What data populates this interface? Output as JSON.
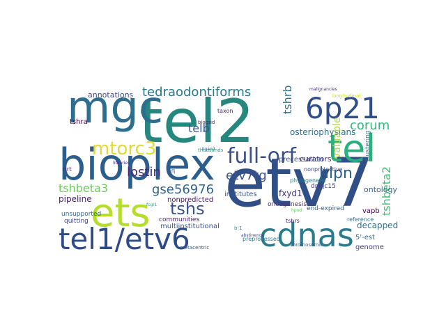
{
  "title": "",
  "words": [
    {
      "text": "etv7",
      "color": "#2f4f86"
    },
    {
      "text": "tel2",
      "color": "#26877e"
    },
    {
      "text": "bioplex",
      "color": "#2b5e8d"
    },
    {
      "text": "mgc",
      "color": "#2d6e8e"
    },
    {
      "text": "ets",
      "color": "#b5de2b"
    },
    {
      "text": "tel1/etv6",
      "color": "#2f4b86"
    },
    {
      "text": "cdnas",
      "color": "#2a7b8e"
    },
    {
      "text": "tel",
      "color": "#2ab07f"
    },
    {
      "text": "6p21",
      "color": "#2f4e8a"
    },
    {
      "text": "full-orf",
      "color": "#3b4f8a"
    },
    {
      "text": "mtorc3",
      "color": "#e0d936"
    },
    {
      "text": "tedraodontiforms",
      "color": "#2a788e"
    },
    {
      "text": "tshs",
      "color": "#3a5389"
    },
    {
      "text": "gse56976",
      "color": "#31638d"
    },
    {
      "text": "hlpn",
      "color": "#2b5f8c"
    },
    {
      "text": "etv7tg",
      "color": "#3c508b"
    },
    {
      "text": "corum",
      "color": "#32b67a"
    },
    {
      "text": "lostin",
      "color": "#482677"
    },
    {
      "text": "tshbeta3",
      "color": "#6ccd5a"
    },
    {
      "text": "tshbeta2",
      "color": "#3fbc73"
    },
    {
      "text": "tshrb",
      "color": "#2d718e"
    },
    {
      "text": "telb",
      "color": "#3b528b"
    },
    {
      "text": "ontology",
      "color": "#355f8d"
    },
    {
      "text": "fxyd1",
      "color": "#453581"
    },
    {
      "text": "osteriophysians",
      "color": "#2e6f8e"
    },
    {
      "text": "valuable",
      "color": "#a8db34"
    },
    {
      "text": "annotations",
      "color": "#3e4a89"
    },
    {
      "text": "pipeline",
      "color": "#482173"
    },
    {
      "text": "nonpredicted",
      "color": "#481668"
    },
    {
      "text": "communities",
      "color": "#482475"
    },
    {
      "text": "multiinstitutional",
      "color": "#3b528b"
    },
    {
      "text": "unsupported",
      "color": "#31688e"
    },
    {
      "text": "decapped",
      "color": "#2c738e"
    },
    {
      "text": "genome",
      "color": "#433e85"
    },
    {
      "text": "5'-est",
      "color": "#2e6e8e"
    },
    {
      "text": "curators",
      "color": "#46307e"
    },
    {
      "text": "precessation",
      "color": "#3e4c8a"
    },
    {
      "text": "clustering",
      "color": "#25848e"
    },
    {
      "text": "tshra",
      "color": "#440154"
    },
    {
      "text": "institutes",
      "color": "#39568c"
    },
    {
      "text": "oncogenesis",
      "color": "#46327e"
    },
    {
      "text": "dnajc15",
      "color": "#433d84"
    },
    {
      "text": "end-expired",
      "color": "#355f8d"
    },
    {
      "text": "vapb",
      "color": "#440154"
    },
    {
      "text": "tshrs",
      "color": "#481b6d"
    },
    {
      "text": "reference",
      "color": "#2d708e"
    },
    {
      "text": "nrt",
      "color": "#482677"
    },
    {
      "text": "phylogenetic",
      "color": "#277f8e"
    },
    {
      "text": "nonprotective",
      "color": "#3e4989"
    },
    {
      "text": "quitting",
      "color": "#404688"
    },
    {
      "text": "taxon",
      "color": "#482979"
    },
    {
      "text": "biogrid",
      "color": "#472c7a"
    },
    {
      "text": "preprocessed",
      "color": "#2a768e"
    },
    {
      "text": "metacentric",
      "color": "#38588c"
    },
    {
      "text": "chromosomic",
      "color": "#33638d"
    },
    {
      "text": "thousands",
      "color": "#20a386"
    },
    {
      "text": "longitudinal",
      "color": "#d2e21b"
    },
    {
      "text": "b-1",
      "color": "#1f988b"
    },
    {
      "text": "abstinence",
      "color": "#3f4788"
    },
    {
      "text": "ligand",
      "color": "#3b528b"
    },
    {
      "text": "malignancies",
      "color": "#472f7d"
    },
    {
      "text": "hpnd",
      "color": "#5ec962"
    },
    {
      "text": "fcgr1",
      "color": "#1fa088"
    },
    {
      "text": "flj",
      "color": "#39568c"
    },
    {
      "text": "libraries",
      "color": "#472a7a"
    }
  ]
}
